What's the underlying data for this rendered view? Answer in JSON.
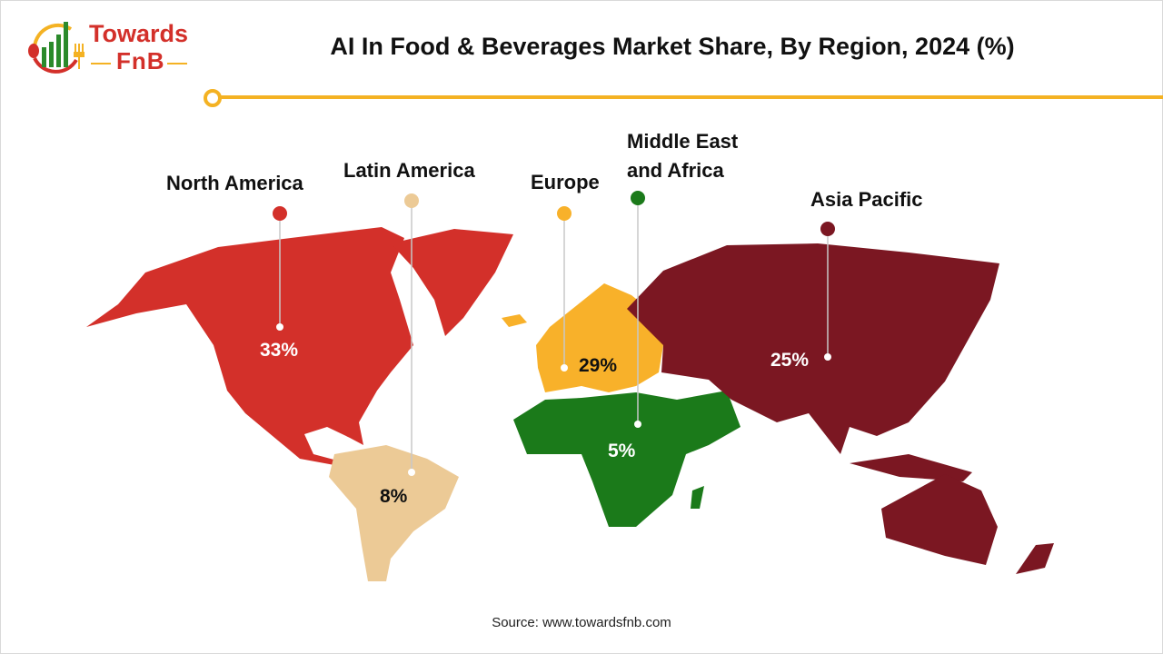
{
  "logo": {
    "line1": "Towards",
    "line2": "FnB"
  },
  "title": "AI In Food & Beverages Market Share, By Region, 2024 (%)",
  "source": "Source: www.towardsfnb.com",
  "chart_data": {
    "type": "map",
    "title": "AI In Food & Beverages Market Share, By Region, 2024 (%)",
    "regions": [
      {
        "name": "North America",
        "value": 33,
        "label": "33%",
        "color": "#d3302a"
      },
      {
        "name": "Latin America",
        "value": 8,
        "label": "8%",
        "color": "#ecca96"
      },
      {
        "name": "Europe",
        "value": 29,
        "label": "29%",
        "color": "#f8b12a"
      },
      {
        "name": "Middle East and Africa",
        "name_lines": [
          "Middle East",
          "and Africa"
        ],
        "value": 5,
        "label": "5%",
        "color": "#1b7a1a"
      },
      {
        "name": "Asia Pacific",
        "value": 25,
        "label": "25%",
        "color": "#7b1722"
      }
    ]
  }
}
